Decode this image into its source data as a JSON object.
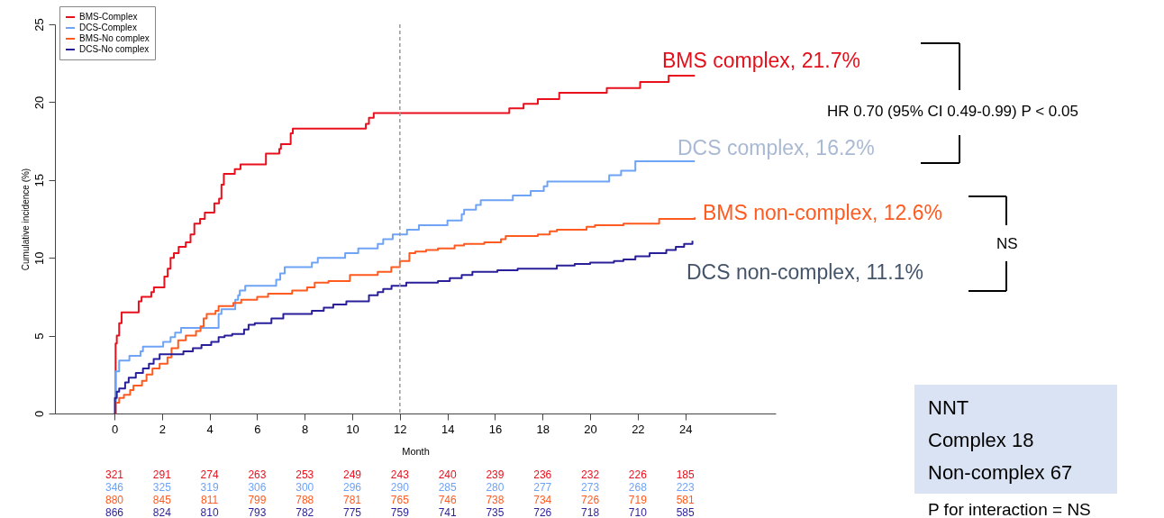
{
  "chart_data": {
    "type": "step",
    "xlabel": "Month",
    "ylabel": "Cumulative incidence (%)",
    "xlim": [
      -2.5,
      27.8
    ],
    "xticks": [
      0,
      2,
      4,
      6,
      8,
      10,
      12,
      14,
      16,
      18,
      20,
      22,
      24
    ],
    "ylim": [
      0,
      25
    ],
    "yticks": [
      0,
      5,
      10,
      15,
      20,
      25
    ],
    "grid": false,
    "legend": "top left",
    "marker": "none",
    "line_style": "solid",
    "ref_lines": [
      {
        "axis": "x",
        "value": 12,
        "color": "#999999",
        "line_style": "dashed"
      }
    ],
    "series": [
      {
        "name": "BMS-Complex",
        "color": "#e8101c",
        "x": [
          0,
          0.05,
          0.1,
          0.2,
          0.3,
          1.02,
          1.14,
          1.55,
          1.66,
          2.1,
          2.24,
          2.36,
          2.5,
          2.7,
          3.0,
          3.2,
          3.36,
          3.6,
          3.8,
          4.2,
          4.4,
          4.5,
          4.6,
          5.06,
          5.3,
          6.37,
          6.93,
          7.0,
          7.41,
          7.5,
          10.57,
          10.7,
          10.9,
          16.6,
          17.2,
          17.8,
          18.7,
          20.7,
          22.1,
          23.3,
          24.4
        ],
        "values": [
          0,
          4.5,
          5.0,
          5.8,
          6.5,
          7.2,
          7.5,
          7.8,
          8.1,
          8.8,
          9.3,
          10.0,
          10.3,
          10.7,
          11.0,
          11.5,
          12.2,
          12.5,
          12.9,
          13.5,
          13.8,
          14.7,
          15.4,
          15.7,
          16.0,
          16.7,
          17.0,
          17.3,
          18.0,
          18.3,
          18.6,
          19.0,
          19.3,
          19.6,
          19.9,
          20.2,
          20.6,
          20.9,
          21.3,
          21.7,
          21.7
        ]
      },
      {
        "name": "DCS-Complex",
        "color": "#6fa3f5",
        "x": [
          0,
          0.05,
          0.2,
          0.63,
          1.1,
          1.2,
          2.05,
          2.36,
          2.55,
          2.8,
          4.38,
          4.5,
          5.08,
          5.2,
          5.27,
          5.5,
          6.8,
          6.97,
          7.16,
          8.3,
          8.55,
          9.7,
          10.25,
          11.07,
          11.3,
          11.7,
          12.3,
          12.8,
          14.0,
          14.6,
          14.7,
          15.2,
          15.4,
          16.75,
          17.5,
          18.05,
          18.2,
          20.8,
          21.3,
          21.9,
          24.4
        ],
        "values": [
          0,
          2.7,
          3.4,
          3.7,
          4.0,
          4.3,
          4.6,
          4.9,
          5.2,
          5.5,
          6.4,
          6.7,
          7.3,
          7.6,
          7.9,
          8.2,
          8.6,
          9.0,
          9.4,
          9.7,
          10.0,
          10.3,
          10.6,
          10.9,
          11.2,
          11.5,
          11.8,
          12.1,
          12.4,
          12.8,
          13.1,
          13.4,
          13.7,
          14.0,
          14.3,
          14.6,
          14.9,
          15.3,
          15.6,
          16.2,
          16.2
        ]
      },
      {
        "name": "BMS-No complex",
        "color": "#ff5a1f",
        "x": [
          0,
          0.05,
          0.2,
          0.4,
          0.66,
          0.8,
          1.16,
          1.35,
          1.6,
          1.9,
          2.23,
          2.4,
          2.68,
          3.0,
          3.43,
          3.62,
          3.75,
          3.88,
          4.25,
          4.38,
          5.0,
          5.33,
          6.0,
          6.46,
          7.47,
          8.1,
          8.42,
          9.0,
          9.9,
          11.07,
          11.64,
          12.0,
          12.4,
          12.65,
          13.1,
          13.6,
          14.3,
          14.7,
          15.55,
          16.25,
          16.45,
          17.8,
          18.3,
          18.6,
          19.85,
          20.2,
          21.4,
          22.9,
          24.4
        ],
        "values": [
          0,
          0.7,
          1.0,
          1.2,
          1.5,
          1.8,
          2.1,
          2.5,
          2.9,
          3.2,
          3.6,
          4.2,
          4.7,
          5.0,
          5.3,
          5.6,
          6.1,
          6.4,
          6.6,
          6.9,
          7.1,
          7.3,
          7.5,
          7.7,
          7.9,
          8.1,
          8.4,
          8.5,
          8.9,
          9.1,
          9.4,
          9.8,
          10.3,
          10.4,
          10.5,
          10.6,
          10.8,
          10.9,
          11.0,
          11.2,
          11.4,
          11.5,
          11.7,
          11.8,
          12.0,
          12.1,
          12.2,
          12.5,
          12.6
        ]
      },
      {
        "name": "DCS-No complex",
        "color": "#2a1f9a",
        "x": [
          0,
          0.02,
          0.1,
          0.2,
          0.45,
          0.6,
          0.9,
          1.2,
          1.45,
          1.65,
          1.9,
          2.9,
          3.3,
          3.66,
          4.07,
          4.38,
          4.63,
          4.95,
          5.45,
          5.64,
          5.9,
          6.6,
          7.1,
          8.3,
          8.8,
          9.2,
          9.75,
          10.7,
          11.07,
          11.3,
          11.65,
          12.27,
          13.6,
          14.1,
          14.6,
          15.05,
          16.1,
          16.95,
          18.6,
          19.35,
          20.0,
          21.0,
          21.4,
          21.9,
          22.5,
          23.2,
          23.6,
          23.95,
          24.3
        ],
        "values": [
          0,
          1.0,
          1.4,
          1.6,
          2.0,
          2.3,
          2.6,
          2.9,
          3.2,
          3.5,
          3.8,
          4.0,
          4.2,
          4.4,
          4.6,
          4.9,
          5.0,
          5.1,
          5.4,
          5.7,
          5.8,
          6.1,
          6.4,
          6.6,
          6.8,
          7.0,
          7.2,
          7.6,
          7.8,
          8.0,
          8.2,
          8.4,
          8.5,
          8.7,
          8.9,
          9.1,
          9.2,
          9.3,
          9.5,
          9.6,
          9.7,
          9.8,
          9.9,
          10.1,
          10.3,
          10.5,
          10.7,
          10.9,
          11.1
        ]
      }
    ],
    "annotations": [
      "BMS complex, 21.7%",
      "DCS complex, 16.2%",
      "BMS non-complex, 12.6%",
      "DCS non-complex, 11.1%",
      "HR 0.70 (95% CI 0.49-0.99)  P < 0.05",
      "NS",
      "NNT",
      "Complex 18",
      "Non-complex 67",
      "P for interaction = NS",
      "321 291 274 263 253 249 243 240 239 236 232 226 185",
      "346 325 319 306 300 296 290 285 280 277 273 268 223",
      "880 845 811 799 788 781 765 746 738 734 726 719 581",
      "866 824 810 793 782 775 759 741 735 726 718 710 585"
    ]
  }
}
